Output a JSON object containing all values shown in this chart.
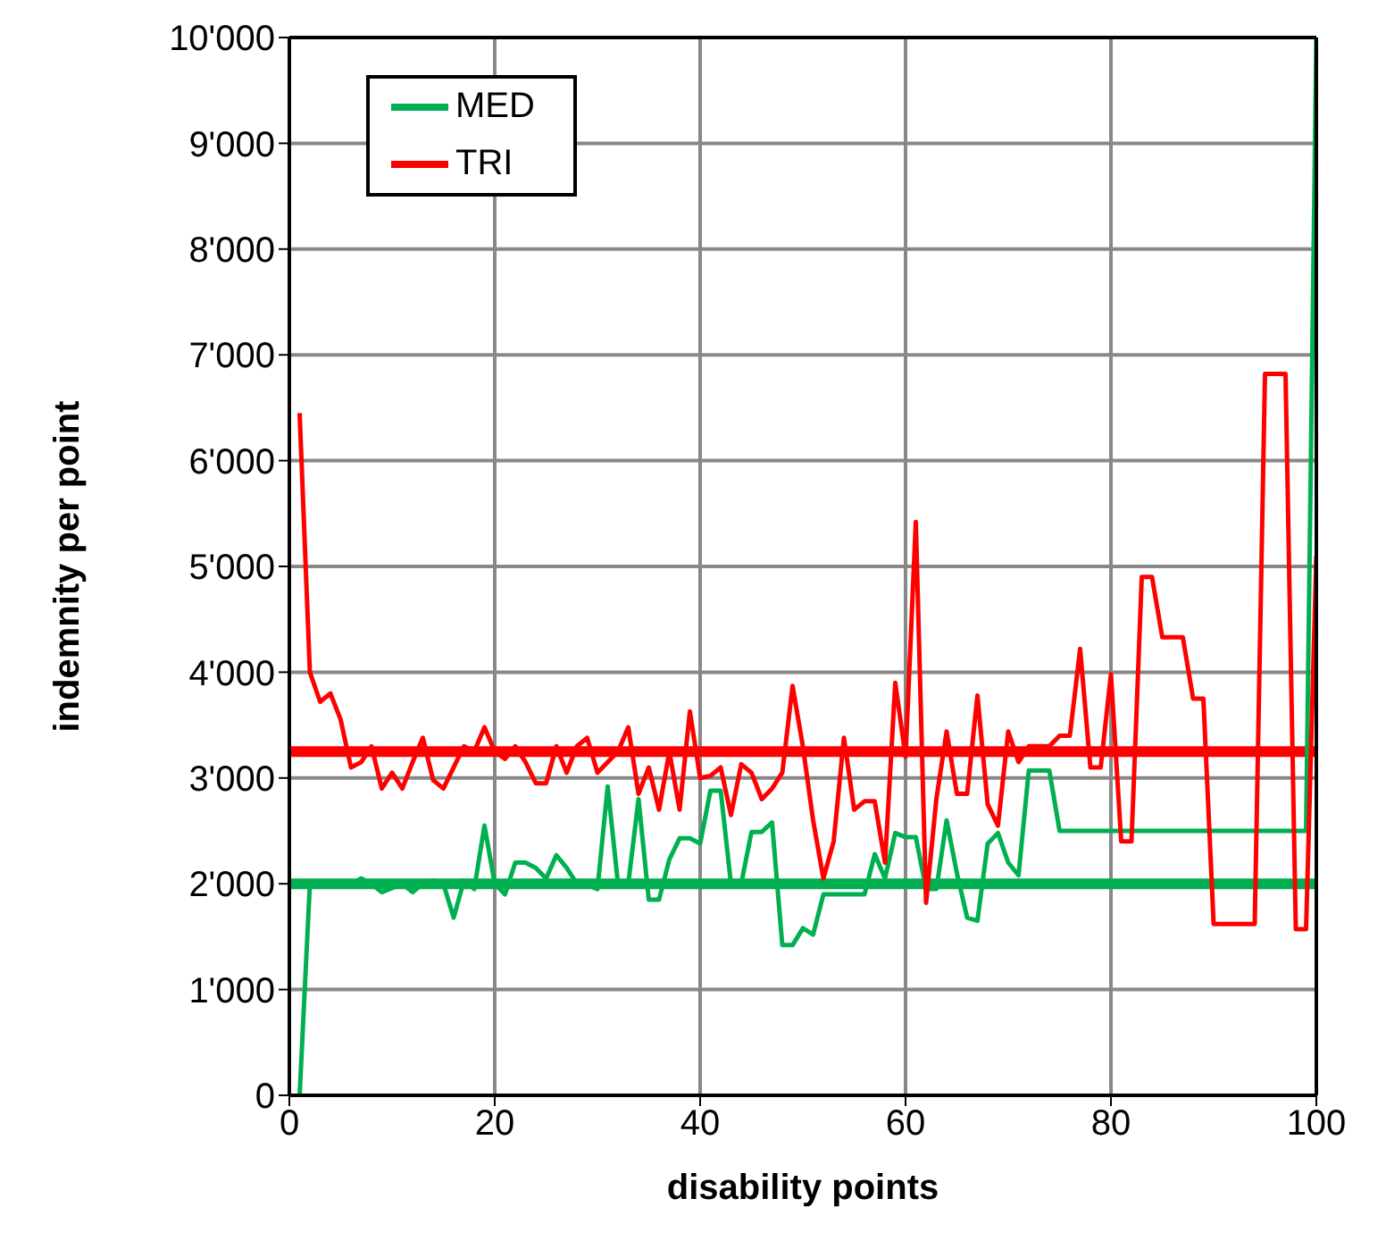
{
  "chart_data": {
    "type": "line",
    "xlabel": "disability points",
    "ylabel": "indemnity per point",
    "x": [
      1,
      2,
      3,
      4,
      5,
      6,
      7,
      8,
      9,
      10,
      11,
      12,
      13,
      14,
      15,
      16,
      17,
      18,
      19,
      20,
      21,
      22,
      23,
      24,
      25,
      26,
      27,
      28,
      29,
      30,
      31,
      32,
      33,
      34,
      35,
      36,
      37,
      38,
      39,
      40,
      41,
      42,
      43,
      44,
      45,
      46,
      47,
      48,
      49,
      50,
      51,
      52,
      53,
      54,
      55,
      56,
      57,
      58,
      59,
      60,
      61,
      62,
      63,
      64,
      65,
      66,
      67,
      68,
      69,
      70,
      71,
      72,
      73,
      74,
      75,
      76,
      77,
      78,
      79,
      80,
      81,
      82,
      83,
      84,
      85,
      86,
      87,
      88,
      89,
      90,
      91,
      92,
      93,
      94,
      95,
      96,
      97,
      98,
      99,
      100
    ],
    "series": [
      {
        "name": "MED",
        "color": "#00b050",
        "values": [
          0,
          2000,
          2000,
          2000,
          2000,
          2000,
          2050,
          2000,
          1920,
          1960,
          2000,
          1920,
          2000,
          2030,
          2000,
          1680,
          2030,
          1950,
          2550,
          2000,
          1900,
          2200,
          2200,
          2150,
          2050,
          2270,
          2150,
          2000,
          1990,
          1950,
          2920,
          2000,
          2000,
          2800,
          1850,
          1850,
          2230,
          2430,
          2430,
          2380,
          2880,
          2880,
          2000,
          2000,
          2490,
          2490,
          2580,
          1420,
          1420,
          1580,
          1520,
          1900,
          1900,
          1900,
          1900,
          1900,
          2280,
          2050,
          2480,
          2440,
          2440,
          1950,
          1950,
          2600,
          2100,
          1680,
          1650,
          2380,
          2480,
          2200,
          2080,
          3070,
          3070,
          3070,
          2500,
          2500,
          2500,
          2500,
          2500,
          2500,
          2500,
          2500,
          2500,
          2500,
          2500,
          2500,
          2500,
          2500,
          2500,
          2500,
          2500,
          2500,
          2500,
          2500,
          2500,
          2500,
          2500,
          2500,
          2500,
          10000
        ]
      },
      {
        "name": "TRI",
        "color": "#ff0000",
        "values": [
          6450,
          4000,
          3720,
          3800,
          3550,
          3100,
          3150,
          3300,
          2900,
          3050,
          2900,
          3150,
          3380,
          2980,
          2900,
          3100,
          3300,
          3250,
          3480,
          3250,
          3180,
          3300,
          3150,
          2950,
          2950,
          3300,
          3050,
          3300,
          3380,
          3050,
          3150,
          3250,
          3480,
          2850,
          3100,
          2700,
          3250,
          2700,
          3630,
          3000,
          3020,
          3100,
          2650,
          3130,
          3050,
          2800,
          2900,
          3050,
          3870,
          3300,
          2600,
          2050,
          2400,
          3380,
          2700,
          2780,
          2780,
          2200,
          3900,
          3200,
          5420,
          1820,
          2800,
          3440,
          2850,
          2850,
          3780,
          2750,
          2550,
          3440,
          3150,
          3300,
          3300,
          3300,
          3400,
          3400,
          4220,
          3100,
          3100,
          3980,
          2400,
          2400,
          4900,
          4900,
          4330,
          4330,
          4330,
          3750,
          3750,
          1620,
          1620,
          1620,
          1620,
          1620,
          6820,
          6820,
          6820,
          1570,
          1570,
          5100
        ]
      }
    ],
    "ref_lines": [
      {
        "axis": "y",
        "value": 3250,
        "color": "#ff0000"
      },
      {
        "axis": "y",
        "value": 2000,
        "color": "#00b050"
      }
    ],
    "xlim": [
      0,
      100
    ],
    "xticks": [
      0,
      20,
      40,
      60,
      80,
      100
    ],
    "ylim": [
      0,
      10000
    ],
    "yticks": [
      0,
      {
        "value": 1000,
        "label": "1'000"
      },
      {
        "value": 2000,
        "label": "2'000"
      },
      {
        "value": 3000,
        "label": "3'000"
      },
      {
        "value": 4000,
        "label": "4'000"
      },
      {
        "value": 5000,
        "label": "5'000"
      },
      {
        "value": 6000,
        "label": "6'000"
      },
      {
        "value": 7000,
        "label": "7'000"
      },
      {
        "value": 8000,
        "label": "8'000"
      },
      {
        "value": 9000,
        "label": "9'000"
      },
      {
        "value": 10000,
        "label": "10'000"
      }
    ],
    "grid": true,
    "legend": "top left",
    "marker": "none",
    "line_style": "solid"
  }
}
